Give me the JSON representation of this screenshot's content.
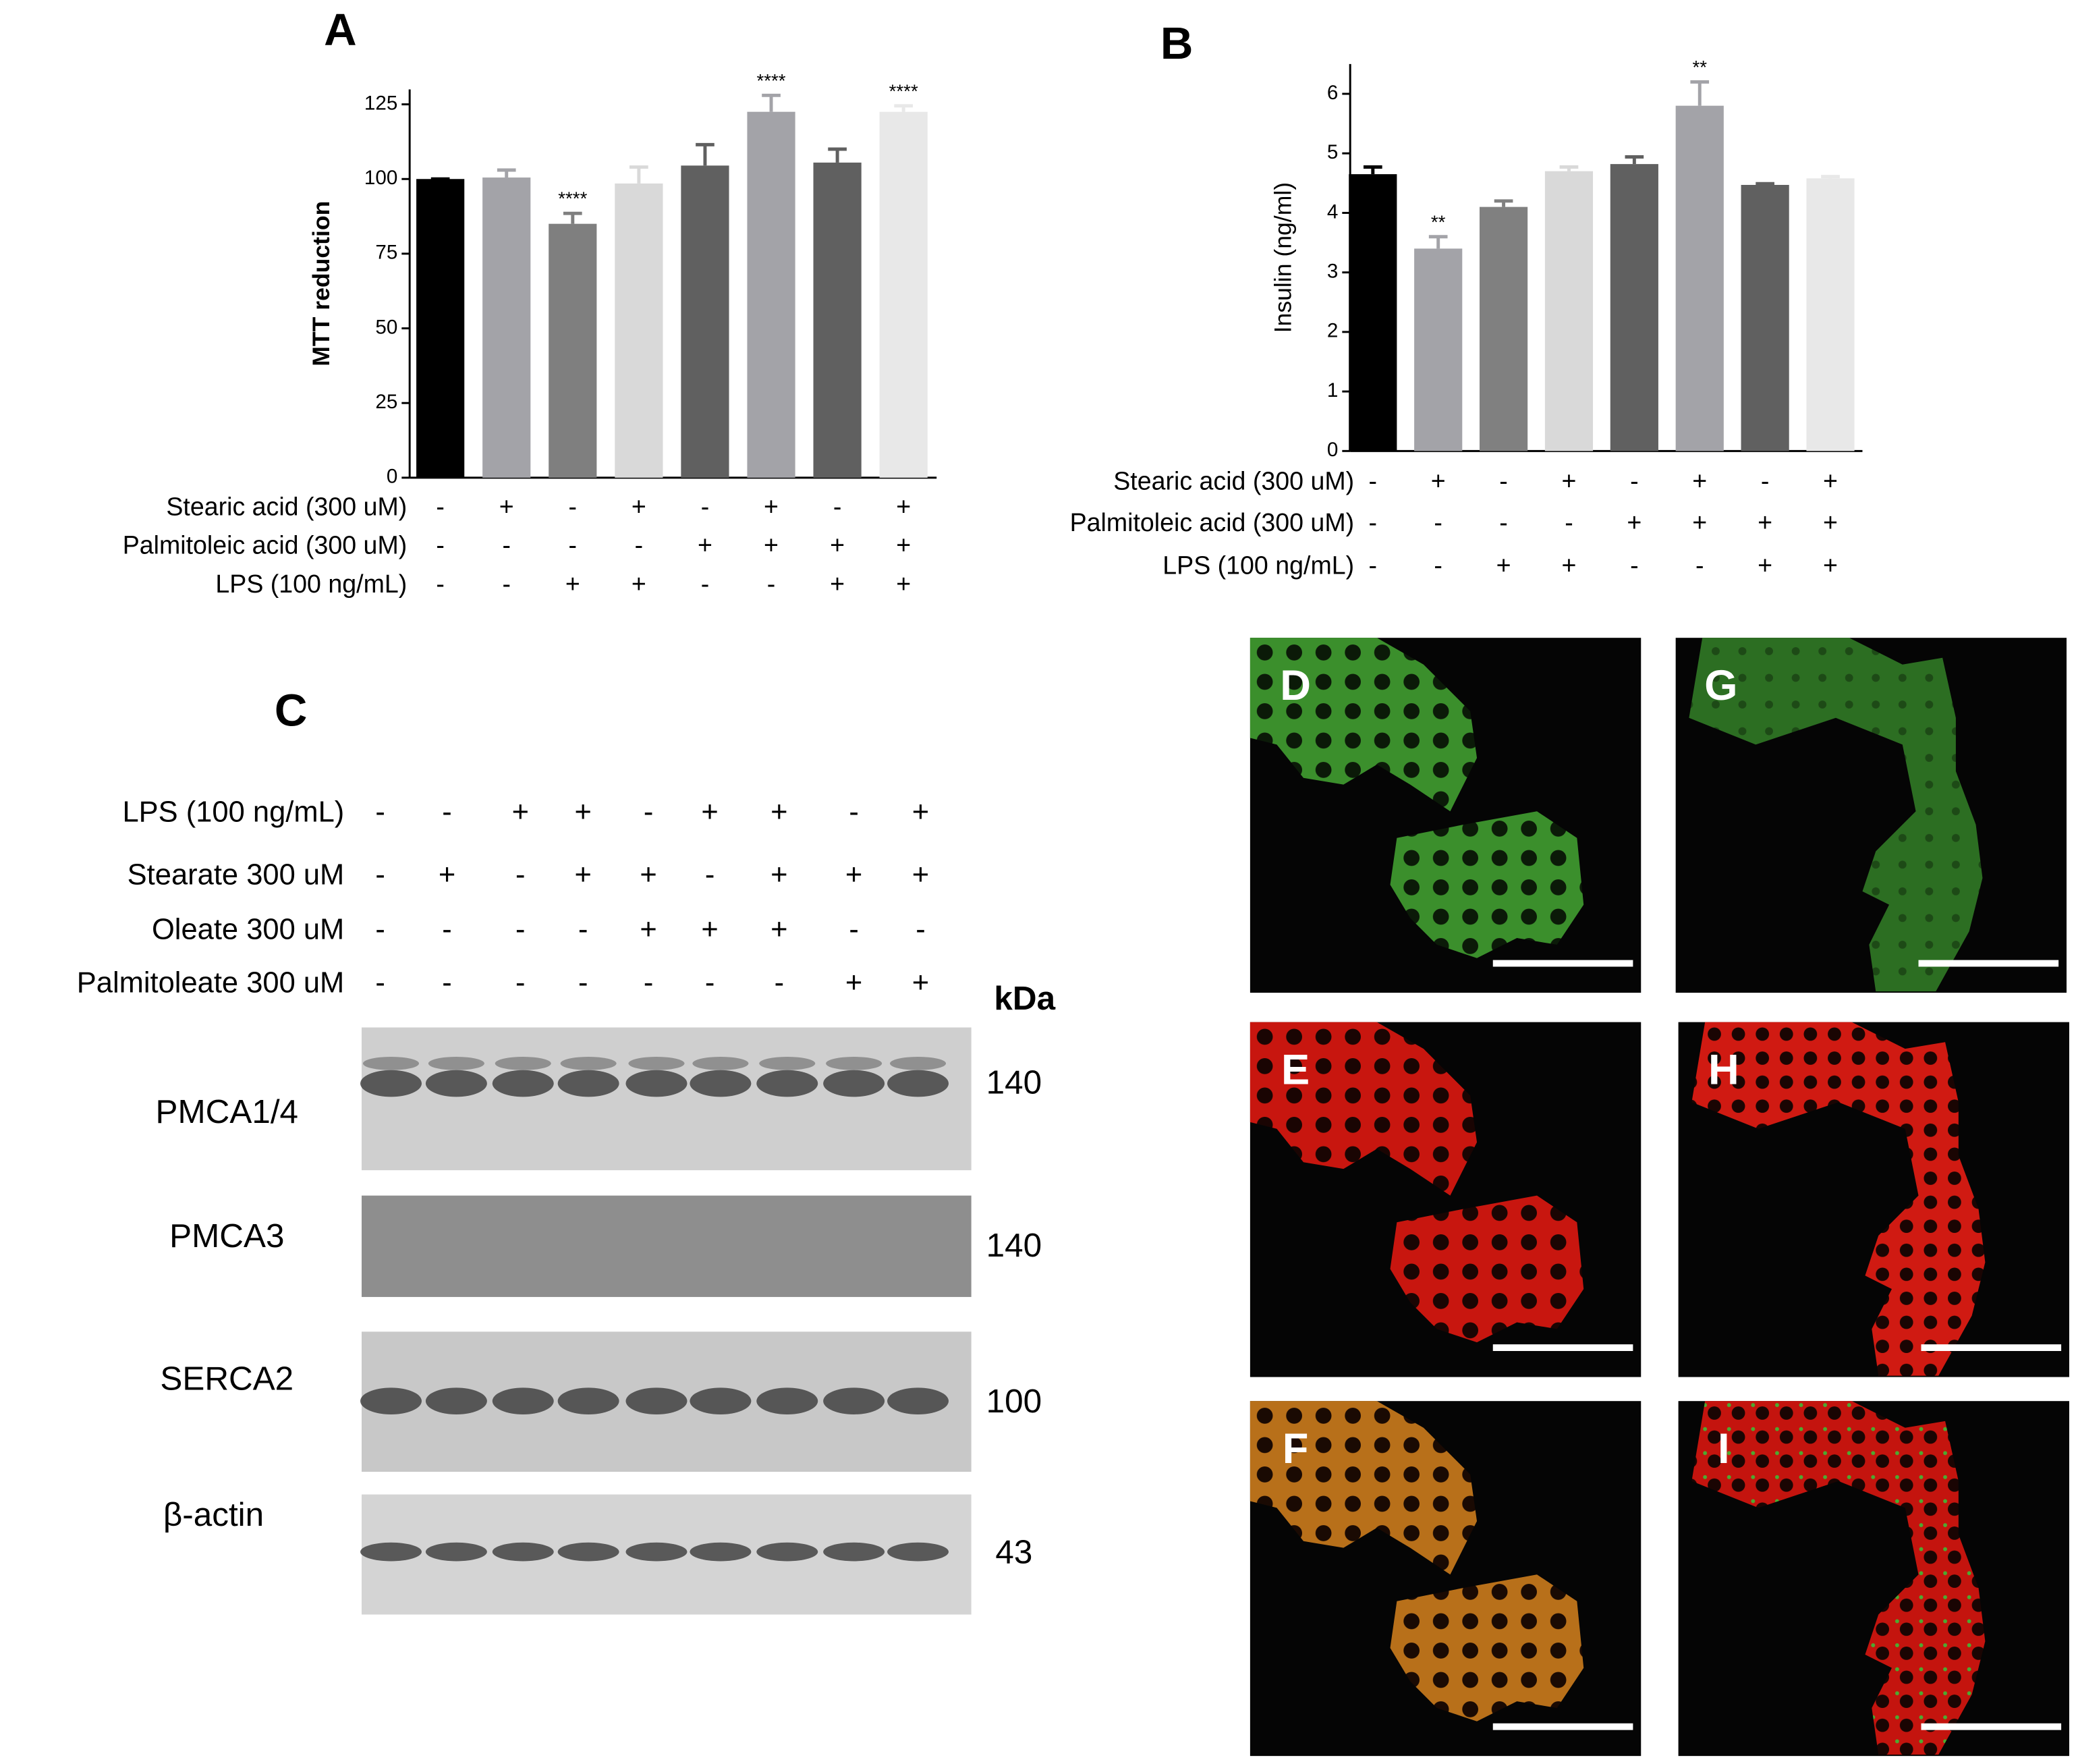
{
  "chart_data": [
    {
      "type": "bar",
      "panel_label": "A",
      "y_label": "MTT reduction",
      "values": [
        100,
        100.5,
        85,
        98.5,
        104.5,
        122.5,
        105.5,
        122.5
      ],
      "errors": [
        0,
        2.5,
        3.5,
        5.5,
        7,
        5.5,
        4.5,
        2
      ],
      "colors": [
        "#000000",
        "#a3a3a8",
        "#7f7f7f",
        "#d9d9d9",
        "#606060",
        "#a3a3a8",
        "#606060",
        "#e8e8e8"
      ],
      "significance": [
        null,
        null,
        "****",
        null,
        null,
        "****",
        null,
        "****"
      ],
      "ylim": [
        0,
        130
      ],
      "yticks": [
        0,
        25,
        50,
        75,
        100,
        125
      ],
      "conditions": [
        {
          "label": "Stearic acid  (300 uM)",
          "marks": [
            "-",
            "+",
            "-",
            "+",
            "-",
            "+",
            "-",
            "+"
          ]
        },
        {
          "label": "Palmitoleic acid (300 uM)",
          "marks": [
            "-",
            "-",
            "-",
            "-",
            "+",
            "+",
            "+",
            "+"
          ]
        },
        {
          "label": "LPS (100 ng/mL)",
          "marks": [
            "-",
            "-",
            "+",
            "+",
            "-",
            "-",
            "+",
            "+"
          ]
        }
      ]
    },
    {
      "type": "bar",
      "panel_label": "B",
      "y_label": "Insulin (ng/ml)",
      "values": [
        4.65,
        3.4,
        4.1,
        4.7,
        4.82,
        5.8,
        4.47,
        4.58
      ],
      "errors": [
        0.12,
        0.2,
        0.1,
        0.07,
        0.12,
        0.4,
        0.02,
        0.03
      ],
      "colors": [
        "#000000",
        "#a3a3a8",
        "#808080",
        "#d9d9d9",
        "#606060",
        "#a3a3a8",
        "#606060",
        "#e8e8e8"
      ],
      "significance": [
        null,
        "**",
        null,
        null,
        null,
        "**",
        null,
        null
      ],
      "ylim": [
        0,
        6.5
      ],
      "yticks": [
        0,
        1,
        2,
        3,
        4,
        5,
        6
      ],
      "conditions": [
        {
          "label": "Stearic acid  (300 uM)",
          "marks": [
            "-",
            "+",
            "-",
            "+",
            "-",
            "+",
            "-",
            "+"
          ]
        },
        {
          "label": "Palmitoleic acid (300 uM)",
          "marks": [
            "-",
            "-",
            "-",
            "-",
            "+",
            "+",
            "+",
            "+"
          ]
        },
        {
          "label": "LPS (100 ng/mL)",
          "marks": [
            "-",
            "-",
            "+",
            "+",
            "-",
            "-",
            "+",
            "+"
          ]
        }
      ]
    }
  ],
  "western_blot": {
    "panel_label": "C",
    "unit_label": "kDa",
    "conditions": [
      {
        "label": "LPS  (100 ng/mL)",
        "marks": [
          "-",
          "-",
          "+",
          "+",
          "-",
          "+",
          "+",
          "-",
          "+"
        ]
      },
      {
        "label": "Stearate 300 uM",
        "marks": [
          "-",
          "+",
          "-",
          "+",
          "+",
          "-",
          "+",
          "+",
          "+"
        ]
      },
      {
        "label": "Oleate 300 uM",
        "marks": [
          "-",
          "-",
          "-",
          "-",
          "+",
          "+",
          "+",
          "-",
          "-"
        ]
      },
      {
        "label": "Palmitoleate 300 uM",
        "marks": [
          "-",
          "-",
          "-",
          "-",
          "-",
          "-",
          "-",
          "+",
          "+"
        ]
      }
    ],
    "blots": [
      {
        "name": "PMCA1/4",
        "size": 140
      },
      {
        "name": "PMCA3",
        "size": 140
      },
      {
        "name": "SERCA2",
        "size": 100
      },
      {
        "name": "β-actin",
        "size": 43
      }
    ]
  },
  "micrographs": [
    {
      "label": "D"
    },
    {
      "label": "G"
    },
    {
      "label": "E"
    },
    {
      "label": "H"
    },
    {
      "label": "F"
    },
    {
      "label": "I"
    }
  ]
}
